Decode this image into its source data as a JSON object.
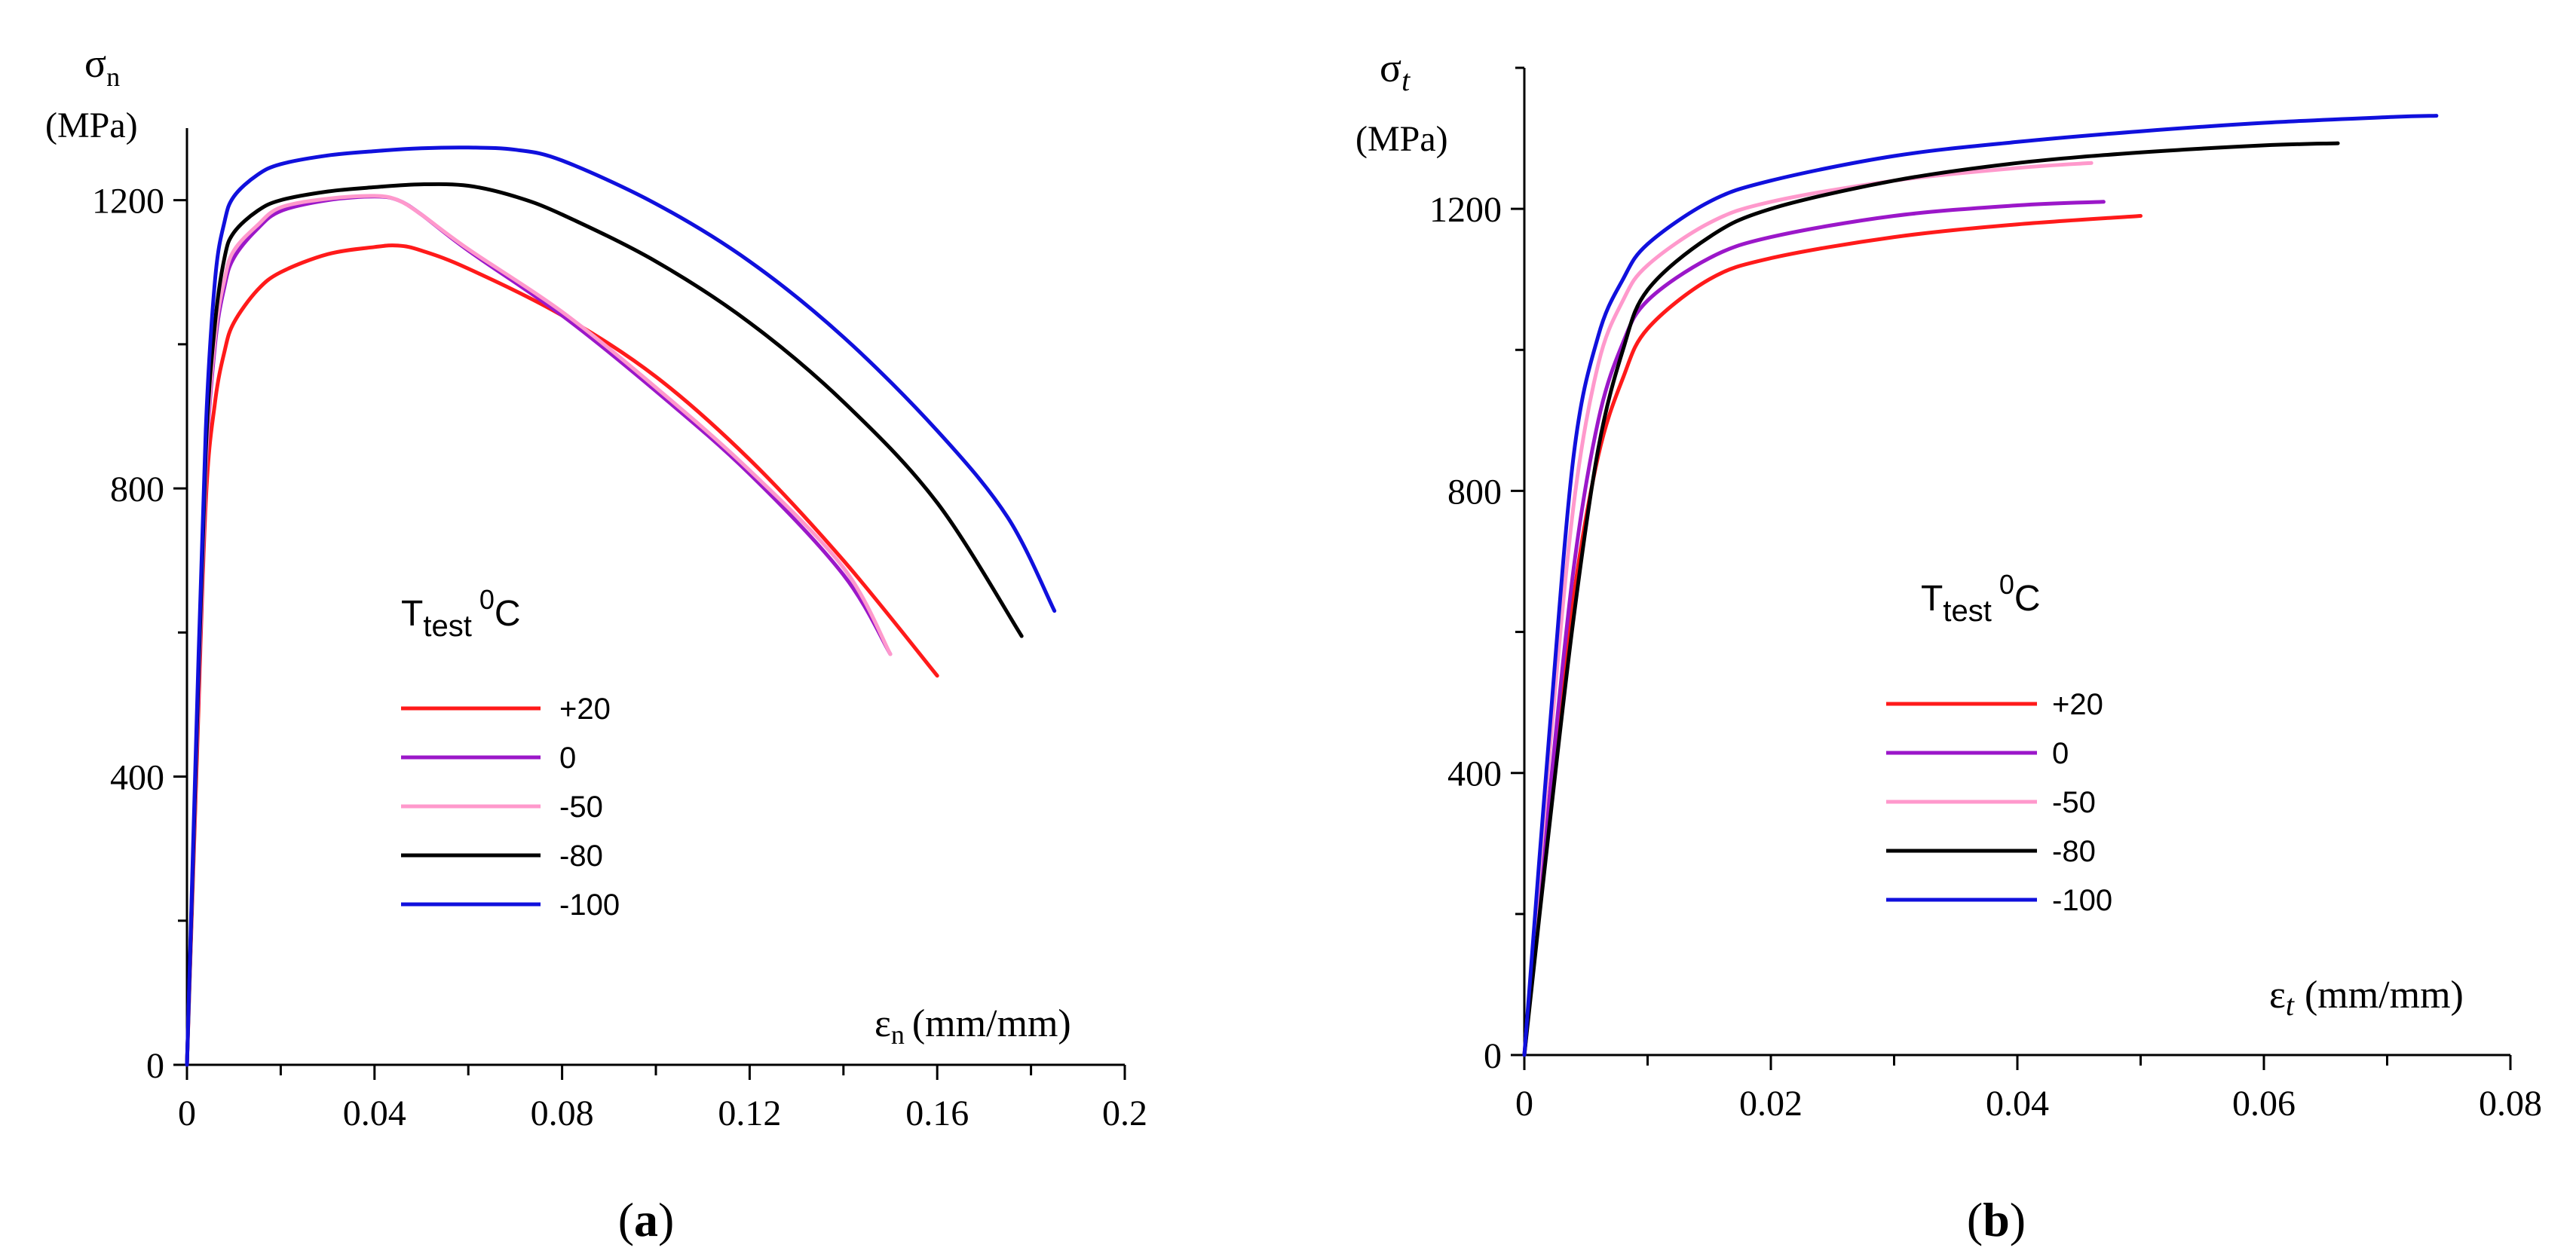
{
  "chart_data": [
    {
      "type": "line",
      "panel_label": "a",
      "ylabel_symbol": "σ",
      "ylabel_sub": "n",
      "ylabel_unit": "(MPa)",
      "xlabel_symbol": "ε",
      "xlabel_sub": "n",
      "xlabel_unit": "(mm/mm)",
      "xlim": [
        0,
        0.2
      ],
      "ylim": [
        0,
        1300
      ],
      "xticks": [
        0,
        0.04,
        0.08,
        0.12,
        0.16,
        0.2
      ],
      "xtick_labels": [
        "0",
        "0.04",
        "0.08",
        "0.12",
        "0.16",
        "0.2"
      ],
      "xminor": [
        0.02,
        0.06,
        0.1,
        0.14,
        0.18
      ],
      "yticks": [
        0,
        400,
        800,
        1200
      ],
      "ytick_labels": [
        "0",
        "400",
        "800",
        "1200"
      ],
      "yminor": [
        200,
        600,
        1000
      ],
      "legend_title_main": "T",
      "legend_title_sub": "test",
      "legend_title_sup": "0",
      "legend_title_unit": "C",
      "series": [
        {
          "name": "+20",
          "color": "#ff1a1a",
          "points": [
            [
              0,
              0
            ],
            [
              0.002,
              400
            ],
            [
              0.004,
              780
            ],
            [
              0.006,
              920
            ],
            [
              0.008,
              990
            ],
            [
              0.01,
              1030
            ],
            [
              0.015,
              1075
            ],
            [
              0.02,
              1100
            ],
            [
              0.03,
              1125
            ],
            [
              0.04,
              1135
            ],
            [
              0.045,
              1137
            ],
            [
              0.05,
              1130
            ],
            [
              0.06,
              1105
            ],
            [
              0.08,
              1040
            ],
            [
              0.1,
              955
            ],
            [
              0.12,
              840
            ],
            [
              0.14,
              700
            ],
            [
              0.16,
              540
            ]
          ]
        },
        {
          "name": "0",
          "color": "#9b17c9",
          "points": [
            [
              0,
              0
            ],
            [
              0.002,
              420
            ],
            [
              0.004,
              820
            ],
            [
              0.006,
              1000
            ],
            [
              0.008,
              1080
            ],
            [
              0.01,
              1120
            ],
            [
              0.015,
              1160
            ],
            [
              0.02,
              1185
            ],
            [
              0.03,
              1200
            ],
            [
              0.04,
              1205
            ],
            [
              0.045,
              1200
            ],
            [
              0.05,
              1180
            ],
            [
              0.06,
              1130
            ],
            [
              0.08,
              1040
            ],
            [
              0.1,
              935
            ],
            [
              0.12,
              820
            ],
            [
              0.14,
              680
            ],
            [
              0.15,
              570
            ]
          ]
        },
        {
          "name": "-50",
          "color": "#ff99cc",
          "points": [
            [
              0,
              0
            ],
            [
              0.002,
              430
            ],
            [
              0.004,
              830
            ],
            [
              0.006,
              1010
            ],
            [
              0.008,
              1090
            ],
            [
              0.01,
              1130
            ],
            [
              0.015,
              1165
            ],
            [
              0.02,
              1190
            ],
            [
              0.03,
              1202
            ],
            [
              0.04,
              1206
            ],
            [
              0.045,
              1200
            ],
            [
              0.05,
              1180
            ],
            [
              0.06,
              1132
            ],
            [
              0.08,
              1045
            ],
            [
              0.1,
              940
            ],
            [
              0.12,
              825
            ],
            [
              0.14,
              690
            ],
            [
              0.15,
              570
            ]
          ]
        },
        {
          "name": "-80",
          "color": "#000000",
          "points": [
            [
              0,
              0
            ],
            [
              0.002,
              440
            ],
            [
              0.004,
              850
            ],
            [
              0.006,
              1030
            ],
            [
              0.008,
              1120
            ],
            [
              0.01,
              1155
            ],
            [
              0.015,
              1185
            ],
            [
              0.02,
              1200
            ],
            [
              0.03,
              1212
            ],
            [
              0.04,
              1218
            ],
            [
              0.05,
              1222
            ],
            [
              0.06,
              1220
            ],
            [
              0.07,
              1205
            ],
            [
              0.08,
              1180
            ],
            [
              0.1,
              1115
            ],
            [
              0.12,
              1030
            ],
            [
              0.14,
              920
            ],
            [
              0.16,
              780
            ],
            [
              0.178,
              595
            ]
          ]
        },
        {
          "name": "-100",
          "color": "#1010dd",
          "points": [
            [
              0,
              0
            ],
            [
              0.002,
              460
            ],
            [
              0.004,
              880
            ],
            [
              0.006,
              1090
            ],
            [
              0.008,
              1170
            ],
            [
              0.01,
              1205
            ],
            [
              0.015,
              1235
            ],
            [
              0.02,
              1250
            ],
            [
              0.03,
              1262
            ],
            [
              0.04,
              1268
            ],
            [
              0.05,
              1272
            ],
            [
              0.06,
              1273
            ],
            [
              0.07,
              1270
            ],
            [
              0.08,
              1255
            ],
            [
              0.1,
              1195
            ],
            [
              0.12,
              1115
            ],
            [
              0.14,
              1010
            ],
            [
              0.16,
              880
            ],
            [
              0.175,
              760
            ],
            [
              0.185,
              630
            ]
          ]
        }
      ]
    },
    {
      "type": "line",
      "panel_label": "b",
      "ylabel_symbol": "σ",
      "ylabel_sub": "t",
      "ylabel_unit": "(MPa)",
      "xlabel_symbol": "ε",
      "xlabel_sub": "t",
      "xlabel_unit": "(mm/mm)",
      "xlim": [
        0,
        0.08
      ],
      "ylim": [
        0,
        1400
      ],
      "xticks": [
        0,
        0.02,
        0.04,
        0.06,
        0.08
      ],
      "xtick_labels": [
        "0",
        "0.02",
        "0.04",
        "0.06",
        "0.08"
      ],
      "xminor": [
        0.01,
        0.03,
        0.05,
        0.07
      ],
      "yticks": [
        0,
        400,
        800,
        1200
      ],
      "ytick_labels": [
        "0",
        "400",
        "800",
        "1200"
      ],
      "yminor": [
        200,
        600,
        1000,
        1400
      ],
      "legend_title_main": "T",
      "legend_title_sub": "test",
      "legend_title_sup": "0",
      "legend_title_unit": "C",
      "series": [
        {
          "name": "+20",
          "color": "#ff1a1a",
          "points": [
            [
              0,
              0
            ],
            [
              0.002,
              350
            ],
            [
              0.004,
              650
            ],
            [
              0.006,
              850
            ],
            [
              0.008,
              960
            ],
            [
              0.01,
              1030
            ],
            [
              0.015,
              1100
            ],
            [
              0.02,
              1130
            ],
            [
              0.03,
              1160
            ],
            [
              0.04,
              1178
            ],
            [
              0.05,
              1190
            ]
          ]
        },
        {
          "name": "0",
          "color": "#9b17c9",
          "points": [
            [
              0,
              0
            ],
            [
              0.002,
              360
            ],
            [
              0.004,
              690
            ],
            [
              0.006,
              900
            ],
            [
              0.008,
              1010
            ],
            [
              0.01,
              1070
            ],
            [
              0.015,
              1130
            ],
            [
              0.02,
              1160
            ],
            [
              0.03,
              1190
            ],
            [
              0.04,
              1205
            ],
            [
              0.047,
              1210
            ]
          ]
        },
        {
          "name": "-50",
          "color": "#ff99cc",
          "points": [
            [
              0,
              0
            ],
            [
              0.002,
              420
            ],
            [
              0.004,
              780
            ],
            [
              0.006,
              980
            ],
            [
              0.008,
              1070
            ],
            [
              0.01,
              1120
            ],
            [
              0.015,
              1180
            ],
            [
              0.02,
              1210
            ],
            [
              0.03,
              1240
            ],
            [
              0.04,
              1258
            ],
            [
              0.046,
              1265
            ]
          ]
        },
        {
          "name": "-80",
          "color": "#000000",
          "points": [
            [
              0,
              0
            ],
            [
              0.002,
              320
            ],
            [
              0.004,
              620
            ],
            [
              0.006,
              860
            ],
            [
              0.008,
              1000
            ],
            [
              0.01,
              1085
            ],
            [
              0.015,
              1160
            ],
            [
              0.02,
              1200
            ],
            [
              0.03,
              1240
            ],
            [
              0.04,
              1265
            ],
            [
              0.05,
              1280
            ],
            [
              0.06,
              1290
            ],
            [
              0.066,
              1293
            ]
          ]
        },
        {
          "name": "-100",
          "color": "#1010dd",
          "points": [
            [
              0,
              0
            ],
            [
              0.002,
              450
            ],
            [
              0.004,
              850
            ],
            [
              0.006,
              1020
            ],
            [
              0.008,
              1100
            ],
            [
              0.01,
              1150
            ],
            [
              0.015,
              1210
            ],
            [
              0.02,
              1240
            ],
            [
              0.03,
              1275
            ],
            [
              0.04,
              1295
            ],
            [
              0.05,
              1310
            ],
            [
              0.06,
              1322
            ],
            [
              0.07,
              1330
            ],
            [
              0.074,
              1332
            ]
          ]
        }
      ]
    }
  ]
}
